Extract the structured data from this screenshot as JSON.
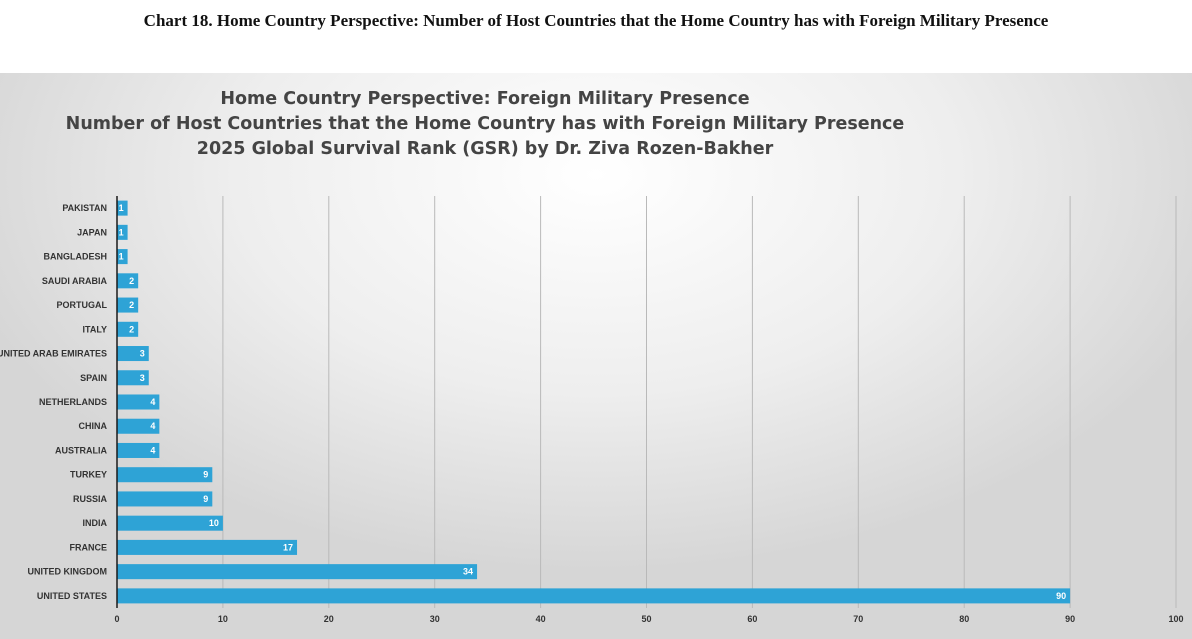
{
  "document": {
    "caption": "Chart 18. Home Country Perspective: Number of Host Countries that the Home Country has with Foreign Military Presence"
  },
  "chart_data": {
    "type": "bar",
    "orientation": "horizontal",
    "title_lines": [
      "Home Country Perspective: Foreign Military Presence",
      "Number of Host Countries that the Home Country has with Foreign Military Presence",
      "2025 Global Survival Rank (GSR) by Dr. Ziva Rozen-Bakher"
    ],
    "categories": [
      "PAKISTAN",
      "JAPAN",
      "BANGLADESH",
      "SAUDI ARABIA",
      "PORTUGAL",
      "ITALY",
      "UNITED ARAB EMIRATES",
      "SPAIN",
      "NETHERLANDS",
      "CHINA",
      "AUSTRALIA",
      "TURKEY",
      "RUSSIA",
      "INDIA",
      "FRANCE",
      "UNITED KINGDOM",
      "UNITED STATES"
    ],
    "values": [
      1,
      1,
      1,
      2,
      2,
      2,
      3,
      3,
      4,
      4,
      4,
      9,
      9,
      10,
      17,
      34,
      90
    ],
    "xlim": [
      0,
      100
    ],
    "xticks": [
      0,
      10,
      20,
      30,
      40,
      50,
      60,
      70,
      80,
      90,
      100
    ],
    "grid": "vertical",
    "legend": "none",
    "colors": {
      "bar": "#2ea3d6",
      "grid": "#b9b9b9",
      "axis": "#1a1a1a"
    }
  }
}
